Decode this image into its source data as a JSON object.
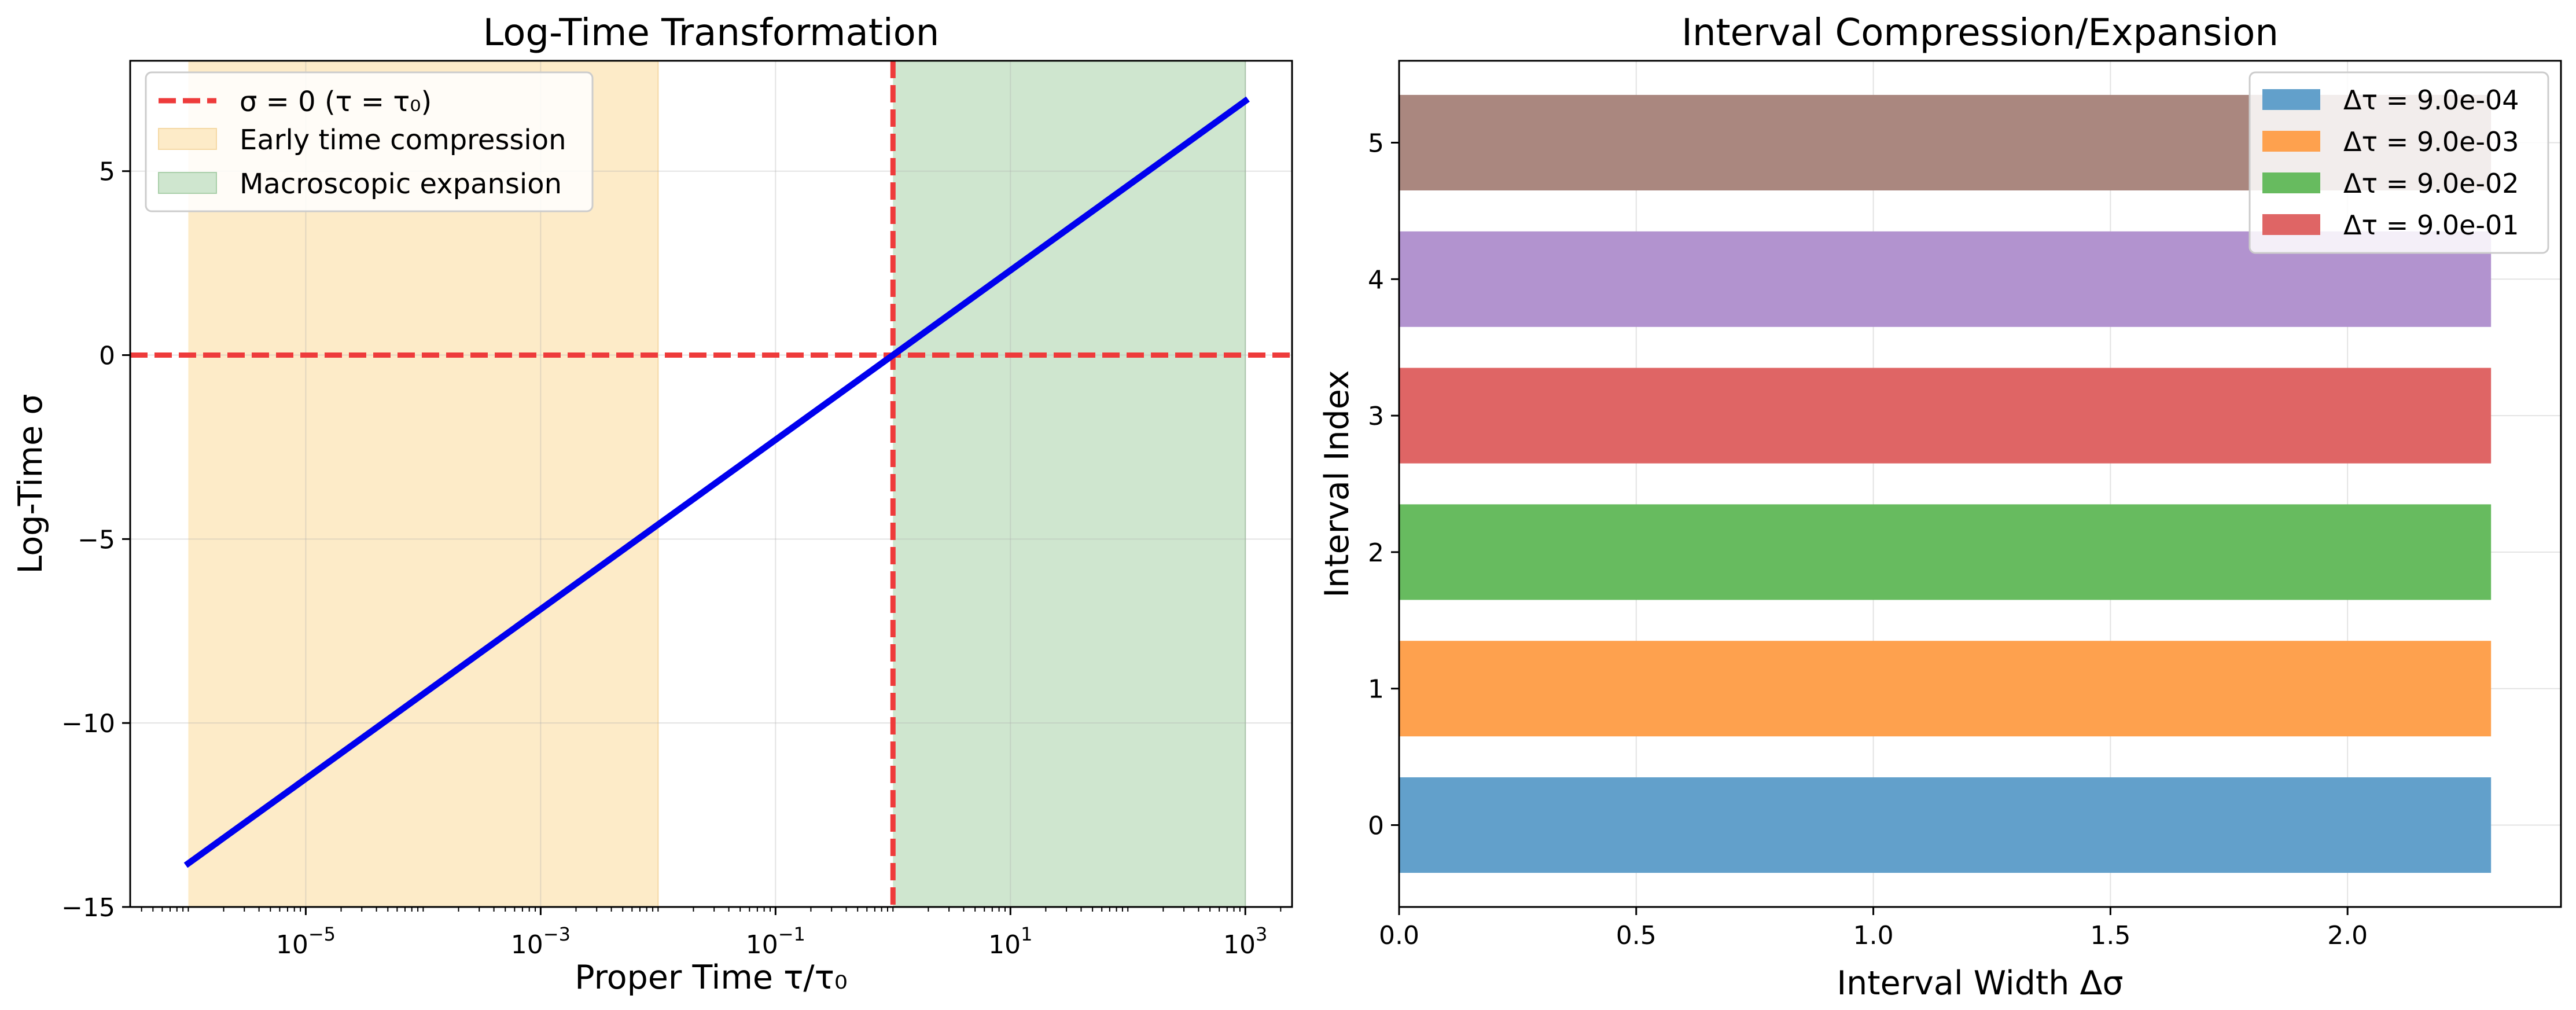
{
  "chart_data": [
    {
      "type": "line",
      "title": "Log-Time Transformation",
      "xlabel": "Proper Time τ/τ₀",
      "ylabel": "Log-Time σ",
      "x_scale": "log",
      "xlim": [
        3.2e-07,
        2500
      ],
      "ylim": [
        -15,
        8
      ],
      "x_ticks": [
        1e-05,
        0.001,
        0.1,
        10.0,
        1000.0
      ],
      "x_tick_labels": [
        {
          "base": "10",
          "exp": "−5"
        },
        {
          "base": "10",
          "exp": "−3"
        },
        {
          "base": "10",
          "exp": "−1"
        },
        {
          "base": "10",
          "exp": "1"
        },
        {
          "base": "10",
          "exp": "3"
        }
      ],
      "y_ticks": [
        -15,
        -10,
        -5,
        0,
        5
      ],
      "y_tick_labels": [
        "−15",
        "−10",
        "−5",
        "0",
        "5"
      ],
      "grid": true,
      "legend_position": "top-left",
      "series": [
        {
          "x": [
            1e-06,
            1000.0
          ],
          "y": [
            -13.8155,
            6.9078
          ],
          "color": "#0000ee"
        }
      ],
      "reference_lines": [
        {
          "orientation": "horizontal",
          "value": 0,
          "color": "#ee3b3b",
          "style": "dashed",
          "label": "σ = 0 (τ = τ₀)"
        },
        {
          "orientation": "vertical",
          "value": 1,
          "color": "#ee3b3b",
          "style": "dashed"
        }
      ],
      "shaded_regions": [
        {
          "x": [
            1e-06,
            0.01
          ],
          "color": "#fdebc8",
          "label": "Early time compression"
        },
        {
          "x": [
            1,
            1000
          ],
          "color": "#cfe6cf",
          "label": "Macroscopic expansion"
        }
      ]
    },
    {
      "type": "bar",
      "orientation": "horizontal",
      "title": "Interval Compression/Expansion",
      "xlabel": "Interval Width Δσ",
      "ylabel": "Interval Index",
      "xlim": [
        0,
        2.45
      ],
      "ylim": [
        -0.6,
        5.6
      ],
      "x_ticks": [
        0,
        0.5,
        1,
        1.5,
        2
      ],
      "x_tick_labels": [
        "0.0",
        "0.5",
        "1.0",
        "1.5",
        "2.0"
      ],
      "categories": [
        "0",
        "1",
        "2",
        "3",
        "4",
        "5"
      ],
      "values": [
        2.3026,
        2.3026,
        2.3026,
        2.3026,
        2.3026,
        2.3026
      ],
      "bar_colors": [
        "#62a0cb",
        "#fea14e",
        "#67bb5f",
        "#df6565",
        "#b293cf",
        "#aa877f"
      ],
      "grid": true,
      "legend_position": "top-right",
      "legend": [
        {
          "label": "Δτ = 9.0e-04",
          "color": "#62a0cb"
        },
        {
          "label": "Δτ = 9.0e-03",
          "color": "#fea14e"
        },
        {
          "label": "Δτ = 9.0e-02",
          "color": "#67bb5f"
        },
        {
          "label": "Δτ = 9.0e-01",
          "color": "#df6565"
        }
      ]
    }
  ]
}
